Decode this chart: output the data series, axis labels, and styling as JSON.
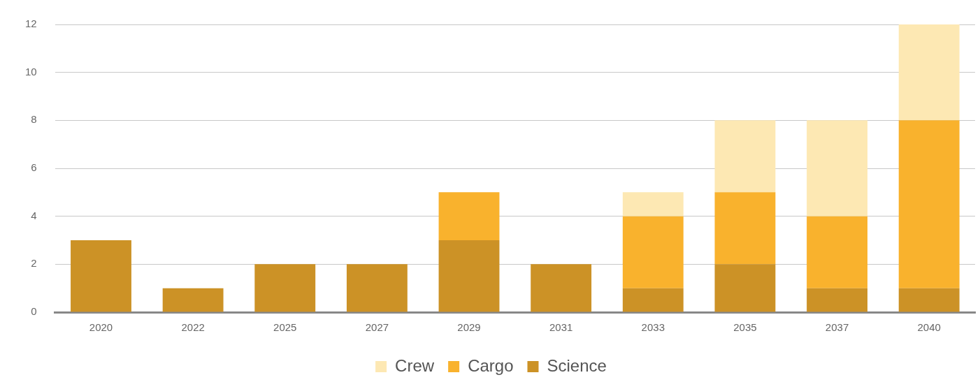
{
  "chart_data": {
    "type": "bar",
    "stacked": true,
    "categories": [
      "2020",
      "2022",
      "2025",
      "2027",
      "2029",
      "2031",
      "2033",
      "2035",
      "2037",
      "2040"
    ],
    "series": [
      {
        "name": "Science",
        "color": "#cc9226",
        "values": [
          3,
          1,
          2,
          2,
          3,
          2,
          1,
          2,
          1,
          1
        ]
      },
      {
        "name": "Cargo",
        "color": "#f9b22d",
        "values": [
          0,
          0,
          0,
          0,
          2,
          0,
          3,
          3,
          3,
          7
        ]
      },
      {
        "name": "Crew",
        "color": "#fde8b3",
        "values": [
          0,
          0,
          0,
          0,
          0,
          0,
          1,
          3,
          4,
          4
        ]
      }
    ],
    "ylim": [
      0,
      12
    ],
    "yticks": [
      0,
      2,
      4,
      6,
      8,
      10,
      12
    ],
    "grid": "y",
    "legend": "bottom"
  }
}
